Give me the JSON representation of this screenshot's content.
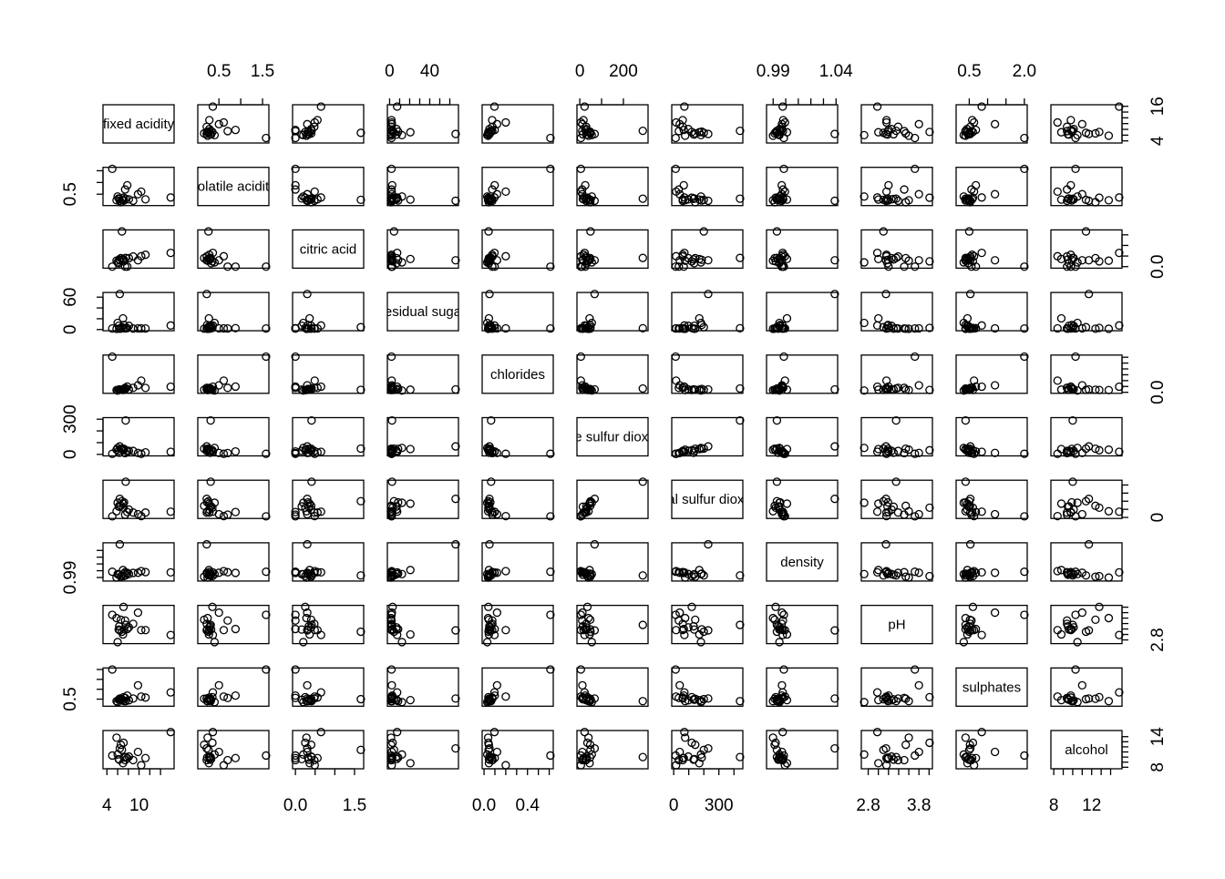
{
  "chart_data": {
    "type": "scatter_matrix",
    "variables": [
      {
        "name": "fixed acidity",
        "lim": [
          3.8,
          16
        ],
        "xticks": [
          4,
          {
            "value": 6,
            "label": null
          },
          {
            "value": 8,
            "label": null
          },
          10,
          {
            "value": 12,
            "label": null
          },
          {
            "value": 14,
            "label": null
          }
        ],
        "yticks": [
          4,
          {
            "value": 6,
            "label": null
          },
          {
            "value": 8,
            "label": null
          },
          {
            "value": 10,
            "label": null
          },
          {
            "value": 12,
            "label": null
          },
          {
            "value": 14,
            "label": null
          },
          16
        ],
        "values": [
          7.4,
          7.8,
          11.2,
          7.0,
          6.3,
          8.1,
          7.2,
          6.2,
          15.9,
          5.0,
          6.8,
          6.4,
          7.5,
          10.4,
          6.6,
          8.9,
          5.8,
          6.0,
          9.8,
          7.1
        ]
      },
      {
        "name": "volatile acidity",
        "lim": [
          0.08,
          1.58
        ],
        "xticks": [
          0.5,
          {
            "value": 1,
            "label": null
          },
          1.5
        ],
        "yticks": [
          0.5,
          {
            "value": 1,
            "label": null
          },
          {
            "value": 1.5,
            "label": null
          }
        ],
        "values": [
          0.7,
          0.88,
          0.28,
          0.27,
          0.3,
          0.28,
          0.23,
          0.32,
          0.36,
          1.58,
          0.26,
          0.22,
          0.31,
          0.61,
          0.16,
          0.22,
          0.24,
          0.4,
          0.5,
          0.35
        ]
      },
      {
        "name": "citric acid",
        "lim": [
          0,
          1.66
        ],
        "xticks": [
          {
            "value": 0,
            "label": "0.0"
          },
          {
            "value": 0.5,
            "label": null
          },
          {
            "value": 1,
            "label": null
          },
          1.5
        ],
        "yticks": [
          {
            "value": 0,
            "label": "0.0"
          },
          {
            "value": 0.5,
            "label": null
          },
          {
            "value": 1,
            "label": null
          },
          {
            "value": 1.5,
            "label": null
          }
        ],
        "values": [
          0.0,
          0.0,
          0.56,
          0.36,
          0.34,
          0.4,
          0.32,
          0.16,
          0.65,
          0.0,
          1.66,
          0.3,
          0.41,
          0.49,
          0.4,
          0.48,
          0.28,
          0.2,
          0.3,
          0.25
        ]
      },
      {
        "name": "residual sugar",
        "lim": [
          0.6,
          65.8
        ],
        "xticks": [
          0,
          {
            "value": 10,
            "label": null
          },
          {
            "value": 20,
            "label": null
          },
          {
            "value": 30,
            "label": null
          },
          40,
          {
            "value": 50,
            "label": null
          },
          {
            "value": 60,
            "label": null
          }
        ],
        "yticks": [
          0,
          {
            "value": 20,
            "label": null
          },
          {
            "value": 40,
            "label": null
          },
          60
        ],
        "values": [
          1.9,
          2.6,
          1.9,
          20.7,
          1.6,
          6.9,
          8.5,
          7.0,
          7.5,
          1.9,
          4.4,
          65.8,
          2.4,
          2.1,
          1.5,
          1.8,
          1.4,
          12.3,
          2.2,
          3.0
        ]
      },
      {
        "name": "chlorides",
        "lim": [
          0.009,
          0.611
        ],
        "xticks": [
          {
            "value": 0,
            "label": "0.0"
          },
          {
            "value": 0.1,
            "label": null
          },
          {
            "value": 0.2,
            "label": null
          },
          {
            "value": 0.3,
            "label": null
          },
          0.4,
          {
            "value": 0.5,
            "label": null
          },
          {
            "value": 0.6,
            "label": null
          }
        ],
        "yticks": [
          {
            "value": 0,
            "label": "0.0"
          },
          {
            "value": 0.1,
            "label": null
          },
          {
            "value": 0.2,
            "label": null
          },
          {
            "value": 0.3,
            "label": null
          },
          {
            "value": 0.4,
            "label": null
          },
          {
            "value": 0.5,
            "label": null
          },
          {
            "value": 0.6,
            "label": null
          }
        ],
        "values": [
          0.076,
          0.098,
          0.075,
          0.045,
          0.049,
          0.05,
          0.058,
          0.045,
          0.096,
          0.611,
          0.042,
          0.05,
          0.065,
          0.2,
          0.044,
          0.077,
          0.038,
          0.03,
          0.12,
          0.04
        ]
      },
      {
        "name": "free sulfur dioxide",
        "lim": [
          0,
          300
        ],
        "xticks": [
          0,
          {
            "value": 100,
            "label": null
          },
          200
        ],
        "yticks": [
          0,
          {
            "value": 100,
            "label": null
          },
          {
            "value": 200,
            "label": null
          },
          300
        ],
        "values": [
          11,
          25,
          17,
          45,
          14,
          30,
          47,
          30,
          22,
          5,
          49,
          68,
          289,
          5,
          48,
          29,
          40,
          55,
          12,
          35
        ]
      },
      {
        "name": "total sulfur dioxide",
        "lim": [
          6,
          440
        ],
        "xticks": [
          0,
          {
            "value": 100,
            "label": null
          },
          {
            "value": 200,
            "label": null
          },
          300,
          {
            "value": 400,
            "label": null
          }
        ],
        "yticks": [
          0,
          {
            "value": 100,
            "label": null
          },
          {
            "value": 200,
            "label": null
          },
          {
            "value": 300,
            "label": null
          },
          {
            "value": 400,
            "label": null
          }
        ],
        "values": [
          34,
          67,
          60,
          170,
          132,
          97,
          186,
          136,
          71,
          13,
          200,
          229,
          440,
          16,
          143,
          60,
          76,
          181,
          40,
          120
        ]
      },
      {
        "name": "density",
        "lim": [
          0.987,
          1.039
        ],
        "xticks": [
          0.99,
          {
            "value": 1,
            "label": null
          },
          {
            "value": 1.01,
            "label": null
          },
          {
            "value": 1.02,
            "label": null
          },
          {
            "value": 1.03,
            "label": null
          },
          1.04
        ],
        "yticks": [
          0.99,
          {
            "value": 1,
            "label": null
          },
          {
            "value": 1.01,
            "label": null
          },
          {
            "value": 1.02,
            "label": null
          },
          {
            "value": 1.03,
            "label": null
          }
        ],
        "values": [
          0.9978,
          0.9968,
          0.998,
          1.001,
          0.994,
          0.9951,
          0.9956,
          0.9949,
          0.9976,
          0.9985,
          0.993,
          1.039,
          0.993,
          0.9994,
          0.9912,
          0.9968,
          0.9899,
          0.995,
          0.997,
          0.992
        ]
      },
      {
        "name": "pH",
        "lim": [
          2.72,
          4.01
        ],
        "xticks": [
          2.8,
          {
            "value": 3,
            "label": null
          },
          {
            "value": 3.2,
            "label": null
          },
          {
            "value": 3.4,
            "label": null
          },
          {
            "value": 3.6,
            "label": null
          },
          3.8,
          {
            "value": 4,
            "label": null
          }
        ],
        "yticks": [
          2.8,
          {
            "value": 3,
            "label": null
          },
          {
            "value": 3.2,
            "label": null
          },
          {
            "value": 3.4,
            "label": null
          },
          {
            "value": 3.6,
            "label": null
          },
          {
            "value": 3.8,
            "label": null
          },
          {
            "value": 4,
            "label": null
          }
        ],
        "values": [
          3.51,
          3.2,
          3.16,
          3.0,
          3.3,
          3.26,
          3.19,
          3.18,
          2.98,
          3.72,
          3.1,
          3.15,
          3.35,
          3.16,
          3.54,
          3.39,
          3.6,
          2.72,
          3.8,
          4.01
        ]
      },
      {
        "name": "sulphates",
        "lim": [
          0.22,
          2
        ],
        "xticks": [
          0.5,
          {
            "value": 1,
            "label": null
          },
          {
            "value": 1.5,
            "label": null
          },
          {
            "value": 2,
            "label": "2.0"
          }
        ],
        "yticks": [
          0.5,
          {
            "value": 1,
            "label": null
          },
          {
            "value": 1.5,
            "label": null
          },
          {
            "value": 2,
            "label": null
          }
        ],
        "values": [
          0.56,
          0.68,
          0.58,
          0.45,
          0.49,
          0.44,
          0.4,
          0.47,
          0.84,
          2.0,
          0.5,
          0.53,
          0.4,
          0.63,
          0.52,
          0.53,
          0.4,
          0.35,
          1.2,
          0.6
        ]
      },
      {
        "name": "alcohol",
        "lim": [
          8,
          14.9
        ],
        "xticks": [
          8,
          {
            "value": 9,
            "label": null
          },
          {
            "value": 10,
            "label": null
          },
          {
            "value": 11,
            "label": null
          },
          12,
          {
            "value": 13,
            "label": null
          },
          {
            "value": 14,
            "label": null
          }
        ],
        "yticks": [
          8,
          {
            "value": 9,
            "label": null
          },
          {
            "value": 10,
            "label": null
          },
          {
            "value": 11,
            "label": null
          },
          {
            "value": 12,
            "label": null
          },
          {
            "value": 13,
            "label": null
          },
          14
        ],
        "values": [
          9.4,
          9.8,
          9.8,
          8.8,
          9.5,
          10.1,
          9.9,
          9.6,
          14.9,
          10.3,
          11.4,
          11.7,
          10.0,
          8.4,
          12.4,
          9.4,
          13.8,
          10.5,
          11.0,
          12.8
        ]
      }
    ]
  }
}
